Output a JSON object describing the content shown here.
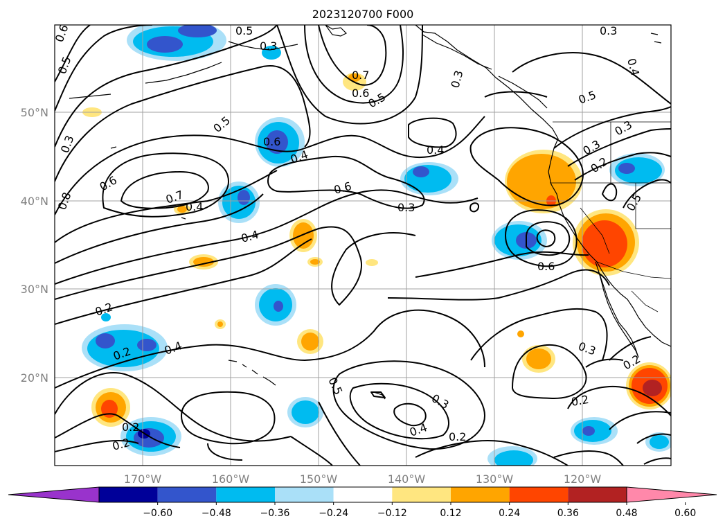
{
  "title": "2023120700 F000",
  "map": {
    "lat_labels": [
      "50°N",
      "40°N",
      "30°N",
      "20°N"
    ],
    "lon_labels": [
      "170°W",
      "160°W",
      "150°W",
      "140°W",
      "130°W",
      "120°W"
    ],
    "contour_labels": [
      "0.6",
      "0.5",
      "0.3",
      "0.5",
      "0.7",
      "0.6",
      "0.5",
      "0.3",
      "0.3",
      "0.4",
      "0.5",
      "0.3",
      "0.5",
      "0.6",
      "0.4",
      "0.6",
      "0.6",
      "0.3",
      "0.4",
      "0.8",
      "0.7",
      "0.4",
      "0.4",
      "0.5",
      "0.6",
      "0.3",
      "0.2",
      "0.3",
      "0.2",
      "0.2",
      "0.4",
      "0.5",
      "0.3",
      "0.2",
      "0.2",
      "0.3",
      "0.4",
      "0.2",
      "0.2",
      "0.2"
    ]
  },
  "colorbar": {
    "ticks": [
      "−0.60",
      "−0.48",
      "−0.36",
      "−0.24",
      "−0.12",
      "0.12",
      "0.24",
      "0.36",
      "0.48",
      "0.60"
    ],
    "colors": [
      "#9933cc",
      "#000099",
      "#3355cc",
      "#00bbf0",
      "#aae0f8",
      "#ffffff",
      "#ffe680",
      "#ffa500",
      "#ff4500",
      "#b22222",
      "#ff88aa"
    ]
  }
}
